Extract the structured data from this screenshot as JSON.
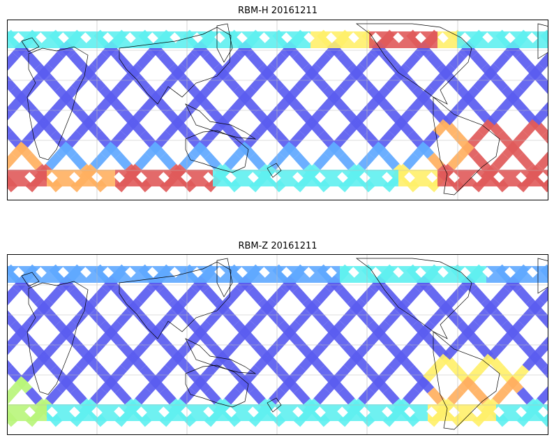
{
  "panels": [
    {
      "title": "RBM-H 20161211",
      "variant": "H"
    },
    {
      "title": "RBM-Z 20161211",
      "variant": "Z"
    }
  ],
  "colors": {
    "low": "#5a5cf0",
    "midlow": "#5fa8ff",
    "mid": "#5ff0f0",
    "midhigh": "#b8f57a",
    "yellow": "#fff06a",
    "orange": "#ffb060",
    "high": "#e05a5a",
    "coast": "#000000",
    "grid": "#bbbbbb"
  }
}
